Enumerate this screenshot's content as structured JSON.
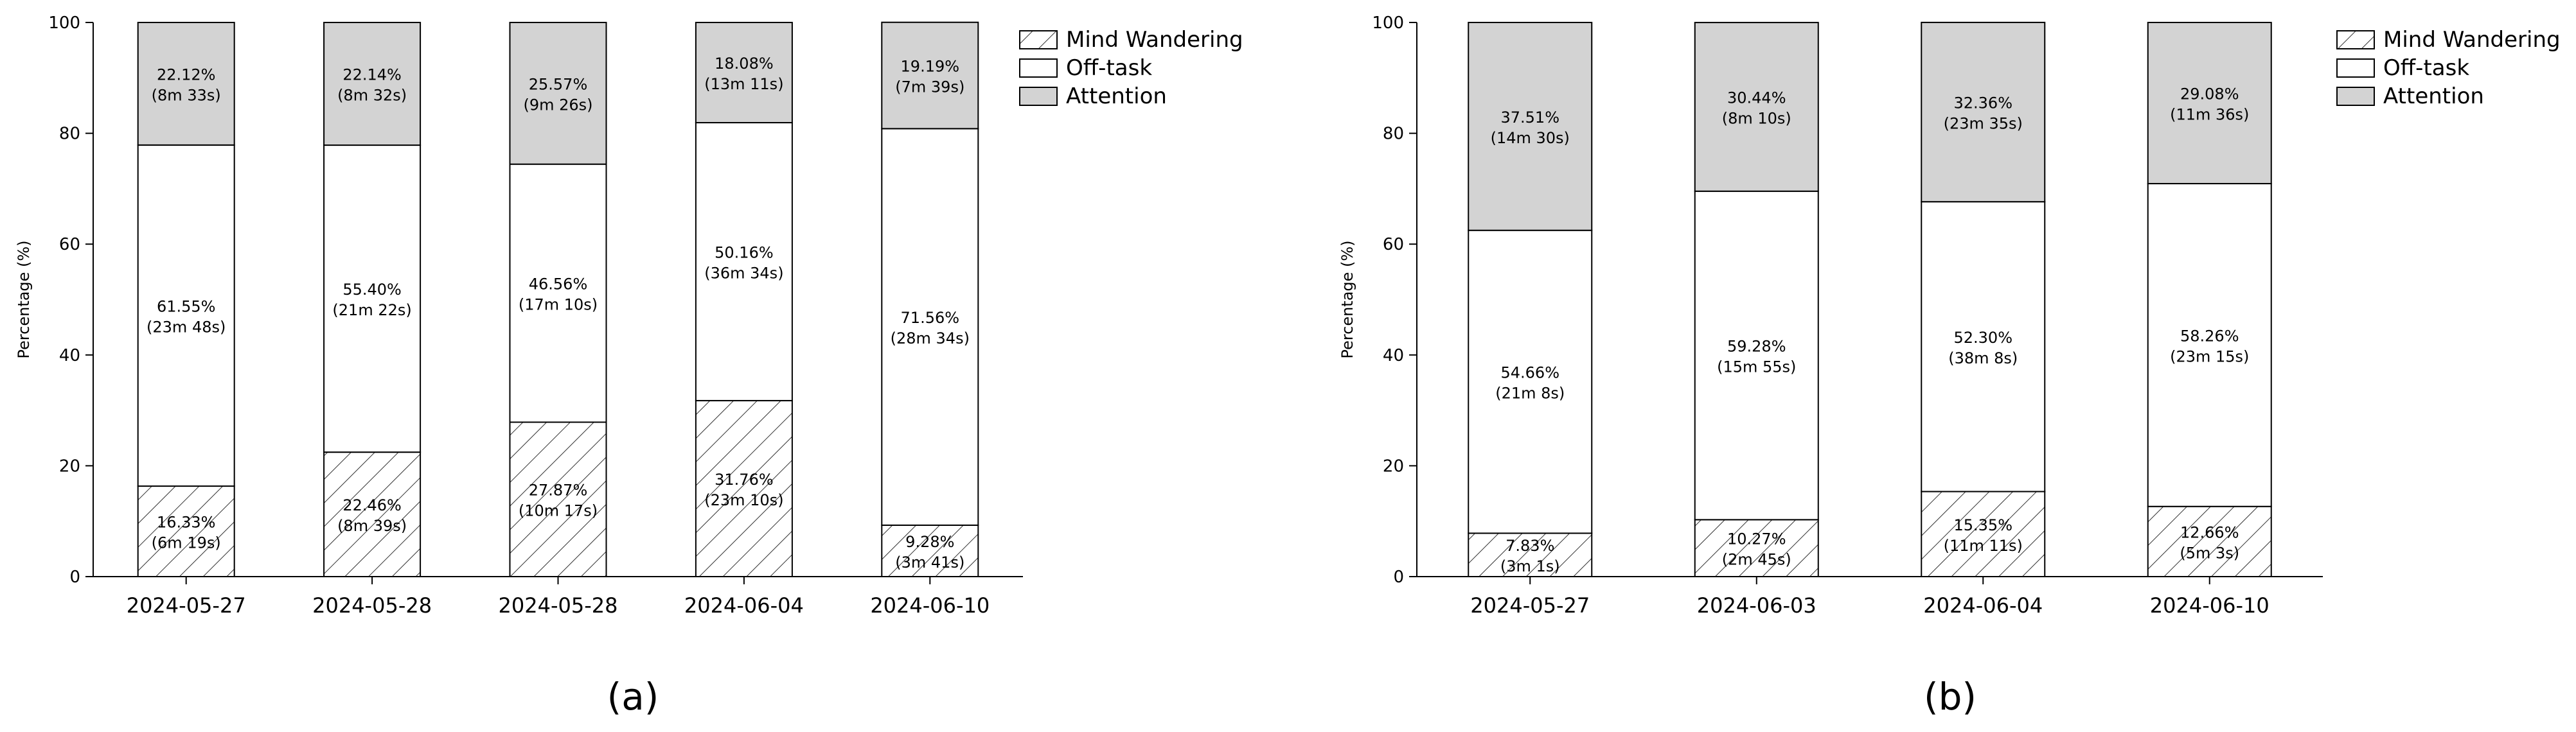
{
  "legend_fills": {
    "Mind Wandering": "hatch",
    "Off-task": "#ffffff",
    "Attention": "#d3d3d3"
  },
  "chart_data": [
    {
      "type": "bar",
      "stacked": true,
      "panel_label": "(a)",
      "title": "",
      "xlabel": "",
      "ylabel": "Percentage (%)",
      "ylim": [
        0,
        100
      ],
      "yticks": [
        0,
        20,
        40,
        60,
        80,
        100
      ],
      "grid": false,
      "legend_position": "top-right, outside plot",
      "categories": [
        "2024-05-27",
        "2024-05-28",
        "2024-05-28",
        "2024-06-04",
        "2024-06-10"
      ],
      "series": [
        {
          "name": "Mind Wandering",
          "values": [
            16.33,
            22.46,
            27.87,
            31.76,
            9.28
          ],
          "percent_labels": [
            "16.33%",
            "22.46%",
            "27.87%",
            "31.76%",
            "9.28%"
          ],
          "duration_labels": [
            "(6m 19s)",
            "(8m 39s)",
            "(10m 17s)",
            "(23m 10s)",
            "(3m 41s)"
          ]
        },
        {
          "name": "Off-task",
          "values": [
            61.55,
            55.4,
            46.56,
            50.16,
            71.56
          ],
          "percent_labels": [
            "61.55%",
            "55.40%",
            "46.56%",
            "50.16%",
            "71.56%"
          ],
          "duration_labels": [
            "(23m 48s)",
            "(21m 22s)",
            "(17m 10s)",
            "(36m 34s)",
            "(28m 34s)"
          ]
        },
        {
          "name": "Attention",
          "values": [
            22.12,
            22.14,
            25.57,
            18.08,
            19.19
          ],
          "percent_labels": [
            "22.12%",
            "22.14%",
            "25.57%",
            "18.08%",
            "19.19%"
          ],
          "duration_labels": [
            "(8m 33s)",
            "(8m 32s)",
            "(9m 26s)",
            "(13m 11s)",
            "(7m 39s)"
          ]
        }
      ]
    },
    {
      "type": "bar",
      "stacked": true,
      "panel_label": "(b)",
      "title": "",
      "xlabel": "",
      "ylabel": "Percentage (%)",
      "ylim": [
        0,
        100
      ],
      "yticks": [
        0,
        20,
        40,
        60,
        80,
        100
      ],
      "grid": false,
      "legend_position": "top-right, outside plot",
      "categories": [
        "2024-05-27",
        "2024-06-03",
        "2024-06-04",
        "2024-06-10"
      ],
      "series": [
        {
          "name": "Mind Wandering",
          "values": [
            7.83,
            10.27,
            15.35,
            12.66
          ],
          "percent_labels": [
            "7.83%",
            "10.27%",
            "15.35%",
            "12.66%"
          ],
          "duration_labels": [
            "(3m 1s)",
            "(2m 45s)",
            "(11m 11s)",
            "(5m 3s)"
          ]
        },
        {
          "name": "Off-task",
          "values": [
            54.66,
            59.28,
            52.3,
            58.26
          ],
          "percent_labels": [
            "54.66%",
            "59.28%",
            "52.30%",
            "58.26%"
          ],
          "duration_labels": [
            "(21m 8s)",
            "(15m 55s)",
            "(38m 8s)",
            "(23m 15s)"
          ]
        },
        {
          "name": "Attention",
          "values": [
            37.51,
            30.44,
            32.36,
            29.08
          ],
          "percent_labels": [
            "37.51%",
            "30.44%",
            "32.36%",
            "29.08%"
          ],
          "duration_labels": [
            "(14m 30s)",
            "(8m 10s)",
            "(23m 35s)",
            "(11m 36s)"
          ]
        }
      ]
    }
  ]
}
